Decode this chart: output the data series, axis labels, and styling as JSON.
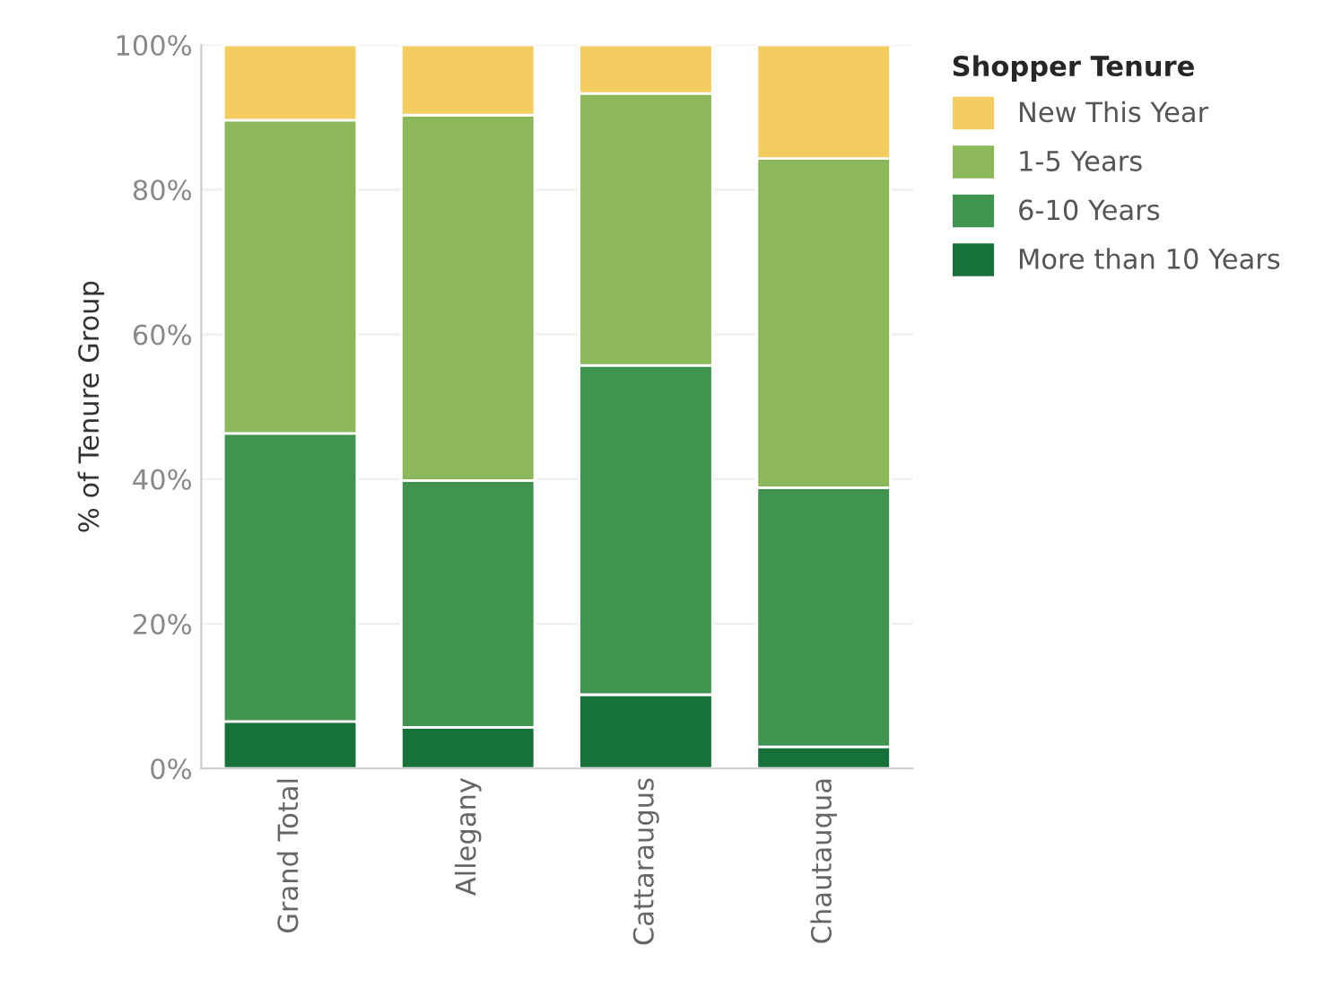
{
  "chart_data": {
    "type": "bar",
    "stacked": true,
    "ylabel": "% of Tenure Group",
    "legend_title": "Shopper Tenure",
    "legend": "top right",
    "grid": "y",
    "categories": [
      "Grand Total",
      "Allegany",
      "Cattaraugus",
      "Chautauqua"
    ],
    "series": [
      {
        "name": "More than 10 Years",
        "color": "#17713a",
        "values": [
          6.5,
          5.7,
          10.2,
          3.0
        ]
      },
      {
        "name": "6-10 Years",
        "color": "#41944f",
        "values": [
          39.8,
          34.1,
          45.5,
          35.8
        ]
      },
      {
        "name": "1-5 Years",
        "color": "#8db85a",
        "values": [
          43.3,
          50.5,
          37.6,
          45.5
        ]
      },
      {
        "name": "New This Year",
        "color": "#f3cd5f",
        "values": [
          10.4,
          9.7,
          6.7,
          15.7
        ]
      }
    ],
    "ylim": [
      0,
      100
    ],
    "yticks": [
      {
        "value": 0,
        "label": "0%"
      },
      {
        "value": 20,
        "label": "20%"
      },
      {
        "value": 40,
        "label": "40%"
      },
      {
        "value": 60,
        "label": "60%"
      },
      {
        "value": 80,
        "label": "80%"
      },
      {
        "value": 100,
        "label": "100%"
      }
    ]
  }
}
